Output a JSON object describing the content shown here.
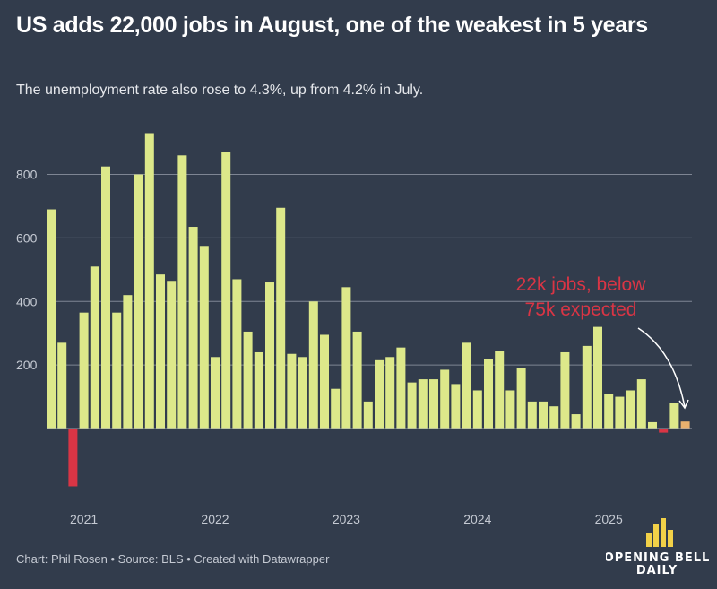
{
  "header": {
    "title": "US adds 22,000 jobs in August, one of the weakest in 5 years",
    "subtitle": "The unemployment rate also rose to 4.3%, up from 4.2% in July."
  },
  "footer": {
    "credit": "Chart: Phil Rosen • Source: BLS • Created with Datawrapper"
  },
  "logo": {
    "line1": "OPENING BELL",
    "line2": "DAILY"
  },
  "colors": {
    "background": "#323c4c",
    "positive": "#dde88a",
    "negative": "#d93545",
    "latest": "#e8b06e",
    "annotation": "#d93545"
  },
  "chart_data": {
    "type": "bar",
    "title": "",
    "xlabel": "",
    "ylabel": "",
    "ylim": [
      -200,
      950
    ],
    "grid": true,
    "y_ticks": [
      200,
      400,
      600,
      800
    ],
    "x_tick_labels": [
      {
        "label": "2021",
        "category": "2021-01"
      },
      {
        "label": "2022",
        "category": "2022-01"
      },
      {
        "label": "2023",
        "category": "2023-01"
      },
      {
        "label": "2024",
        "category": "2024-01"
      },
      {
        "label": "2025",
        "category": "2025-01"
      }
    ],
    "categories": [
      "2020-10",
      "2020-11",
      "2020-12",
      "2021-01",
      "2021-02",
      "2021-03",
      "2021-04",
      "2021-05",
      "2021-06",
      "2021-07",
      "2021-08",
      "2021-09",
      "2021-10",
      "2021-11",
      "2021-12",
      "2022-01",
      "2022-02",
      "2022-03",
      "2022-04",
      "2022-05",
      "2022-06",
      "2022-07",
      "2022-08",
      "2022-09",
      "2022-10",
      "2022-11",
      "2022-12",
      "2023-01",
      "2023-02",
      "2023-03",
      "2023-04",
      "2023-05",
      "2023-06",
      "2023-07",
      "2023-08",
      "2023-09",
      "2023-10",
      "2023-11",
      "2023-12",
      "2024-01",
      "2024-02",
      "2024-03",
      "2024-04",
      "2024-05",
      "2024-06",
      "2024-07",
      "2024-08",
      "2024-09",
      "2024-10",
      "2024-11",
      "2024-12",
      "2025-01",
      "2025-02",
      "2025-03",
      "2025-04",
      "2025-05",
      "2025-06",
      "2025-07",
      "2025-08"
    ],
    "values": [
      690,
      270,
      -182,
      365,
      510,
      825,
      365,
      420,
      800,
      930,
      485,
      465,
      860,
      635,
      575,
      225,
      870,
      470,
      305,
      240,
      460,
      695,
      235,
      225,
      400,
      295,
      125,
      445,
      305,
      85,
      215,
      225,
      255,
      145,
      155,
      155,
      185,
      140,
      270,
      120,
      220,
      245,
      120,
      190,
      85,
      85,
      70,
      240,
      45,
      260,
      320,
      110,
      100,
      120,
      155,
      20,
      -13,
      80,
      22
    ],
    "annotation": {
      "lines": [
        "22k jobs, below",
        "75k expected"
      ],
      "target": "2025-08"
    }
  }
}
